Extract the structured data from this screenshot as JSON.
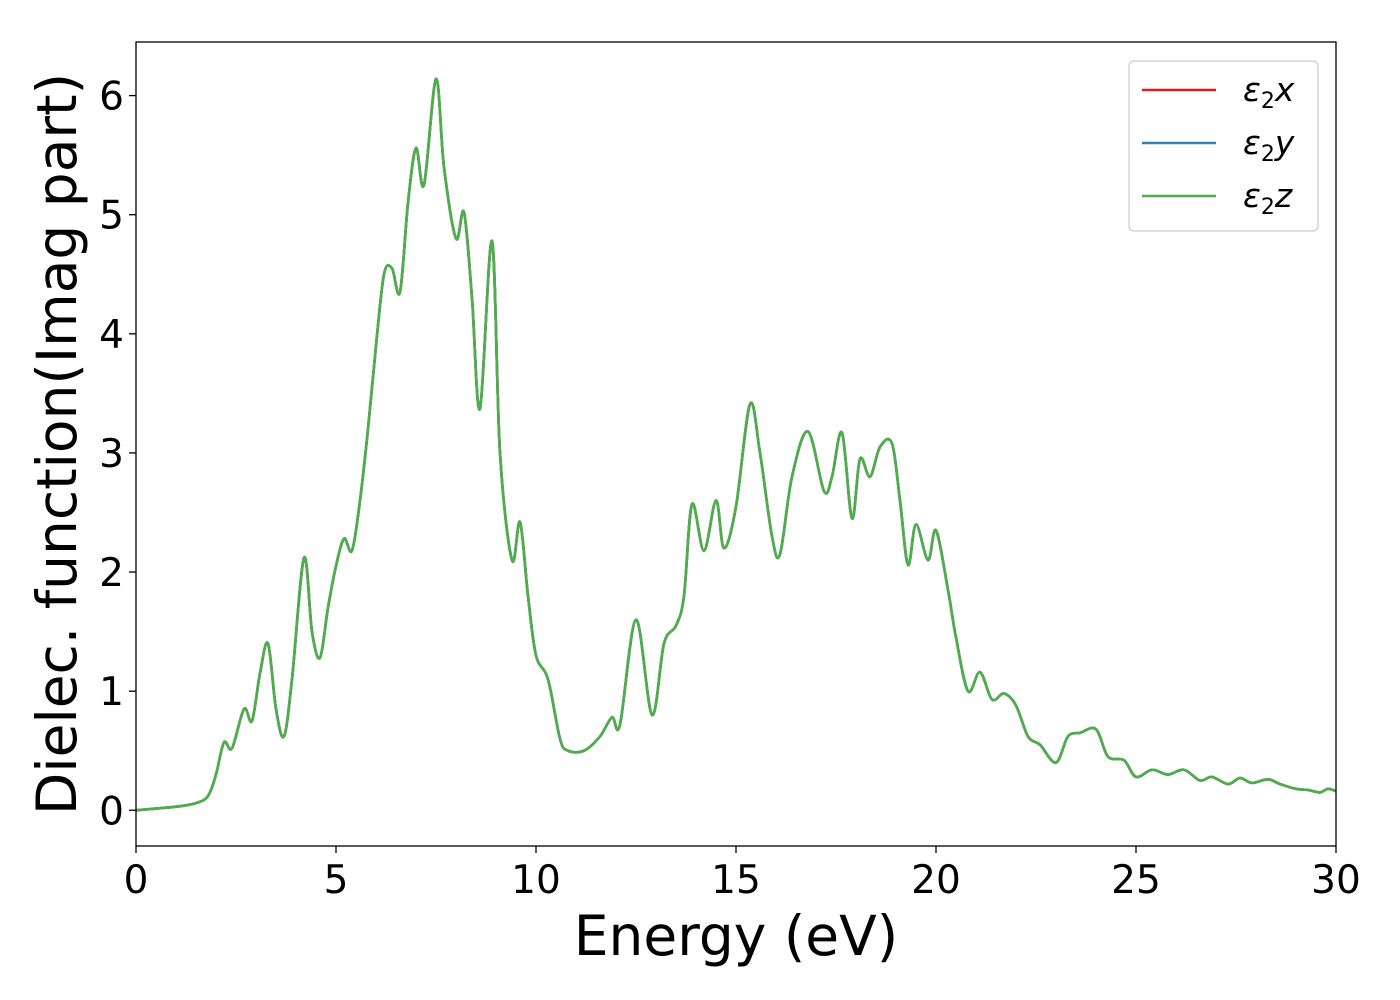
{
  "chart_data": {
    "type": "line",
    "xlabel": "Energy (eV)",
    "ylabel": "Dielec. function(Imag part)",
    "xlim": [
      0,
      30
    ],
    "ylim": [
      -0.3,
      6.45
    ],
    "xticks": [
      0,
      5,
      10,
      15,
      20,
      25,
      30
    ],
    "yticks": [
      0,
      1,
      2,
      3,
      4,
      5,
      6
    ],
    "grid": false,
    "legend_position": "top-right",
    "colors": {
      "x": "#e41a1c",
      "y": "#377eb8",
      "z": "#4daf4a"
    },
    "x": [
      0,
      1,
      1.5,
      1.8,
      2,
      2.2,
      2.4,
      2.7,
      2.9,
      3.1,
      3.3,
      3.5,
      3.7,
      3.9,
      4.2,
      4.4,
      4.6,
      4.8,
      5.0,
      5.2,
      5.4,
      5.6,
      5.8,
      6.0,
      6.2,
      6.4,
      6.6,
      6.8,
      7.0,
      7.2,
      7.5,
      7.7,
      8.0,
      8.2,
      8.4,
      8.6,
      8.9,
      9.1,
      9.4,
      9.6,
      9.8,
      10.0,
      10.3,
      10.6,
      10.8,
      11.2,
      11.6,
      11.9,
      12.1,
      12.5,
      12.9,
      13.2,
      13.5,
      13.7,
      13.9,
      14.2,
      14.5,
      14.7,
      15.0,
      15.35,
      15.6,
      15.9,
      16.1,
      16.4,
      16.8,
      17.2,
      17.4,
      17.65,
      17.9,
      18.1,
      18.35,
      18.6,
      18.9,
      19.1,
      19.3,
      19.5,
      19.8,
      20.0,
      20.3,
      20.5,
      20.8,
      21.1,
      21.4,
      21.7,
      22.0,
      22.3,
      22.6,
      23.0,
      23.3,
      23.6,
      24.0,
      24.3,
      24.7,
      25.0,
      25.4,
      25.8,
      26.2,
      26.6,
      26.9,
      27.3,
      27.6,
      27.9,
      28.3,
      28.6,
      29.0,
      29.3,
      29.6,
      29.8,
      30.0
    ],
    "series": [
      {
        "name": "ε2x",
        "values": [
          0.0,
          0.03,
          0.06,
          0.12,
          0.3,
          0.57,
          0.52,
          0.85,
          0.75,
          1.15,
          1.4,
          0.85,
          0.62,
          1.1,
          2.12,
          1.5,
          1.28,
          1.7,
          2.05,
          2.28,
          2.18,
          2.6,
          3.2,
          3.9,
          4.5,
          4.55,
          4.35,
          5.1,
          5.56,
          5.25,
          6.14,
          5.4,
          4.8,
          5.02,
          4.3,
          3.37,
          4.78,
          3.0,
          2.1,
          2.42,
          1.8,
          1.3,
          1.1,
          0.6,
          0.5,
          0.5,
          0.62,
          0.78,
          0.72,
          1.6,
          0.8,
          1.4,
          1.55,
          1.8,
          2.57,
          2.18,
          2.6,
          2.2,
          2.55,
          3.41,
          3.0,
          2.3,
          2.15,
          2.8,
          3.18,
          2.68,
          2.8,
          3.17,
          2.45,
          2.95,
          2.8,
          3.05,
          3.08,
          2.6,
          2.06,
          2.4,
          2.1,
          2.35,
          1.85,
          1.45,
          1.0,
          1.16,
          0.93,
          0.98,
          0.88,
          0.62,
          0.55,
          0.4,
          0.62,
          0.65,
          0.68,
          0.45,
          0.42,
          0.28,
          0.34,
          0.3,
          0.34,
          0.25,
          0.28,
          0.22,
          0.27,
          0.23,
          0.26,
          0.22,
          0.18,
          0.17,
          0.15,
          0.18,
          0.16
        ]
      },
      {
        "name": "ε2y",
        "values": [
          0.0,
          0.03,
          0.06,
          0.12,
          0.3,
          0.57,
          0.52,
          0.85,
          0.75,
          1.15,
          1.4,
          0.85,
          0.62,
          1.1,
          2.12,
          1.5,
          1.28,
          1.7,
          2.05,
          2.28,
          2.18,
          2.6,
          3.2,
          3.9,
          4.5,
          4.55,
          4.35,
          5.1,
          5.56,
          5.25,
          6.14,
          5.4,
          4.8,
          5.02,
          4.3,
          3.37,
          4.78,
          3.0,
          2.1,
          2.42,
          1.8,
          1.3,
          1.1,
          0.6,
          0.5,
          0.5,
          0.62,
          0.78,
          0.72,
          1.6,
          0.8,
          1.4,
          1.55,
          1.8,
          2.57,
          2.18,
          2.6,
          2.2,
          2.55,
          3.41,
          3.0,
          2.3,
          2.15,
          2.8,
          3.18,
          2.68,
          2.8,
          3.17,
          2.45,
          2.95,
          2.8,
          3.05,
          3.08,
          2.6,
          2.06,
          2.4,
          2.1,
          2.35,
          1.85,
          1.45,
          1.0,
          1.16,
          0.93,
          0.98,
          0.88,
          0.62,
          0.55,
          0.4,
          0.62,
          0.65,
          0.68,
          0.45,
          0.42,
          0.28,
          0.34,
          0.3,
          0.34,
          0.25,
          0.28,
          0.22,
          0.27,
          0.23,
          0.26,
          0.22,
          0.18,
          0.17,
          0.15,
          0.18,
          0.16
        ]
      },
      {
        "name": "ε2z",
        "values": [
          0.0,
          0.03,
          0.06,
          0.12,
          0.3,
          0.57,
          0.52,
          0.85,
          0.75,
          1.15,
          1.4,
          0.85,
          0.62,
          1.1,
          2.12,
          1.5,
          1.28,
          1.7,
          2.05,
          2.28,
          2.18,
          2.6,
          3.2,
          3.9,
          4.5,
          4.55,
          4.35,
          5.1,
          5.56,
          5.25,
          6.14,
          5.4,
          4.8,
          5.02,
          4.3,
          3.37,
          4.78,
          3.0,
          2.1,
          2.42,
          1.8,
          1.3,
          1.1,
          0.6,
          0.5,
          0.5,
          0.62,
          0.78,
          0.72,
          1.6,
          0.8,
          1.4,
          1.55,
          1.8,
          2.57,
          2.18,
          2.6,
          2.2,
          2.55,
          3.41,
          3.0,
          2.3,
          2.15,
          2.8,
          3.18,
          2.68,
          2.8,
          3.17,
          2.45,
          2.95,
          2.8,
          3.05,
          3.08,
          2.6,
          2.06,
          2.4,
          2.1,
          2.35,
          1.85,
          1.45,
          1.0,
          1.16,
          0.93,
          0.98,
          0.88,
          0.62,
          0.55,
          0.4,
          0.62,
          0.65,
          0.68,
          0.45,
          0.42,
          0.28,
          0.34,
          0.3,
          0.34,
          0.25,
          0.28,
          0.22,
          0.27,
          0.23,
          0.26,
          0.22,
          0.18,
          0.17,
          0.15,
          0.18,
          0.16
        ]
      }
    ],
    "legend": [
      {
        "symbol": "ε",
        "sub": "2",
        "axis": "x",
        "color": "#e41a1c"
      },
      {
        "symbol": "ε",
        "sub": "2",
        "axis": "y",
        "color": "#377eb8"
      },
      {
        "symbol": "ε",
        "sub": "2",
        "axis": "z",
        "color": "#4daf4a"
      }
    ]
  }
}
